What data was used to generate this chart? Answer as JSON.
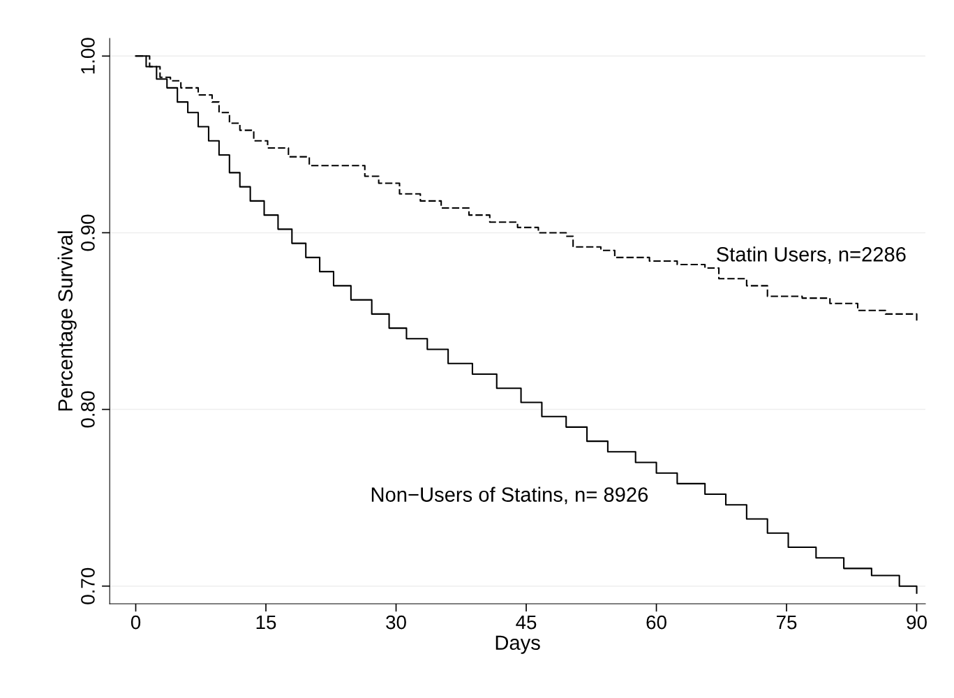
{
  "chart_data": {
    "type": "step",
    "xlabel": "Days",
    "ylabel": "Percentage Survival",
    "xlim": [
      -3,
      91
    ],
    "xticks": [
      0,
      15,
      30,
      45,
      60,
      75,
      90
    ],
    "ylim": [
      0.69,
      1.01
    ],
    "yticks": [
      {
        "value": 0.7,
        "label": "0.70"
      },
      {
        "value": 0.8,
        "label": "0.80"
      },
      {
        "value": 0.9,
        "label": "0.90"
      },
      {
        "value": 1.0,
        "label": "1.00"
      }
    ],
    "grid": "y",
    "series": [
      {
        "name": "Statin Users, n=2286",
        "color": "#000000",
        "line_style": "dashed",
        "x": [
          0,
          1.6,
          2.8,
          4,
          5.2,
          7.2,
          8.8,
          9.6,
          10.8,
          12,
          13.6,
          15.2,
          17.6,
          20,
          24.8,
          26.4,
          28,
          30.4,
          32.8,
          35.2,
          38.4,
          40.8,
          44,
          46.4,
          49.6,
          50.4,
          53.6,
          55.2,
          59.2,
          62.4,
          65.6,
          67.2,
          70.4,
          72.8,
          76.8,
          80,
          83.2,
          86.4,
          90
        ],
        "values": [
          1.0,
          0.994,
          0.988,
          0.986,
          0.982,
          0.978,
          0.974,
          0.968,
          0.962,
          0.958,
          0.952,
          0.948,
          0.943,
          0.938,
          0.938,
          0.932,
          0.928,
          0.922,
          0.918,
          0.914,
          0.91,
          0.906,
          0.903,
          0.9,
          0.898,
          0.892,
          0.89,
          0.886,
          0.884,
          0.882,
          0.88,
          0.874,
          0.87,
          0.864,
          0.863,
          0.86,
          0.856,
          0.854,
          0.85
        ]
      },
      {
        "name": "Non−Users of Statins, n= 8926",
        "color": "#000000",
        "line_style": "solid",
        "x": [
          0,
          1.2,
          2.4,
          3.6,
          4.8,
          6,
          7.2,
          8.4,
          9.6,
          10.8,
          12,
          13.2,
          14.8,
          16.4,
          18,
          19.6,
          21.2,
          22.8,
          24.8,
          27.2,
          29.2,
          31.2,
          33.6,
          36,
          38.8,
          41.6,
          44.4,
          46.8,
          49.6,
          52,
          54.4,
          57.6,
          60,
          62.4,
          65.6,
          68,
          70.4,
          72.8,
          75.2,
          78.4,
          81.6,
          84.8,
          88,
          90
        ],
        "values": [
          1.0,
          0.994,
          0.987,
          0.982,
          0.974,
          0.968,
          0.96,
          0.952,
          0.944,
          0.934,
          0.926,
          0.918,
          0.91,
          0.902,
          0.894,
          0.886,
          0.878,
          0.87,
          0.862,
          0.854,
          0.846,
          0.84,
          0.834,
          0.826,
          0.82,
          0.812,
          0.804,
          0.796,
          0.79,
          0.782,
          0.776,
          0.77,
          0.764,
          0.758,
          0.752,
          0.746,
          0.738,
          0.73,
          0.722,
          0.716,
          0.71,
          0.706,
          0.7,
          0.696
        ]
      }
    ]
  }
}
